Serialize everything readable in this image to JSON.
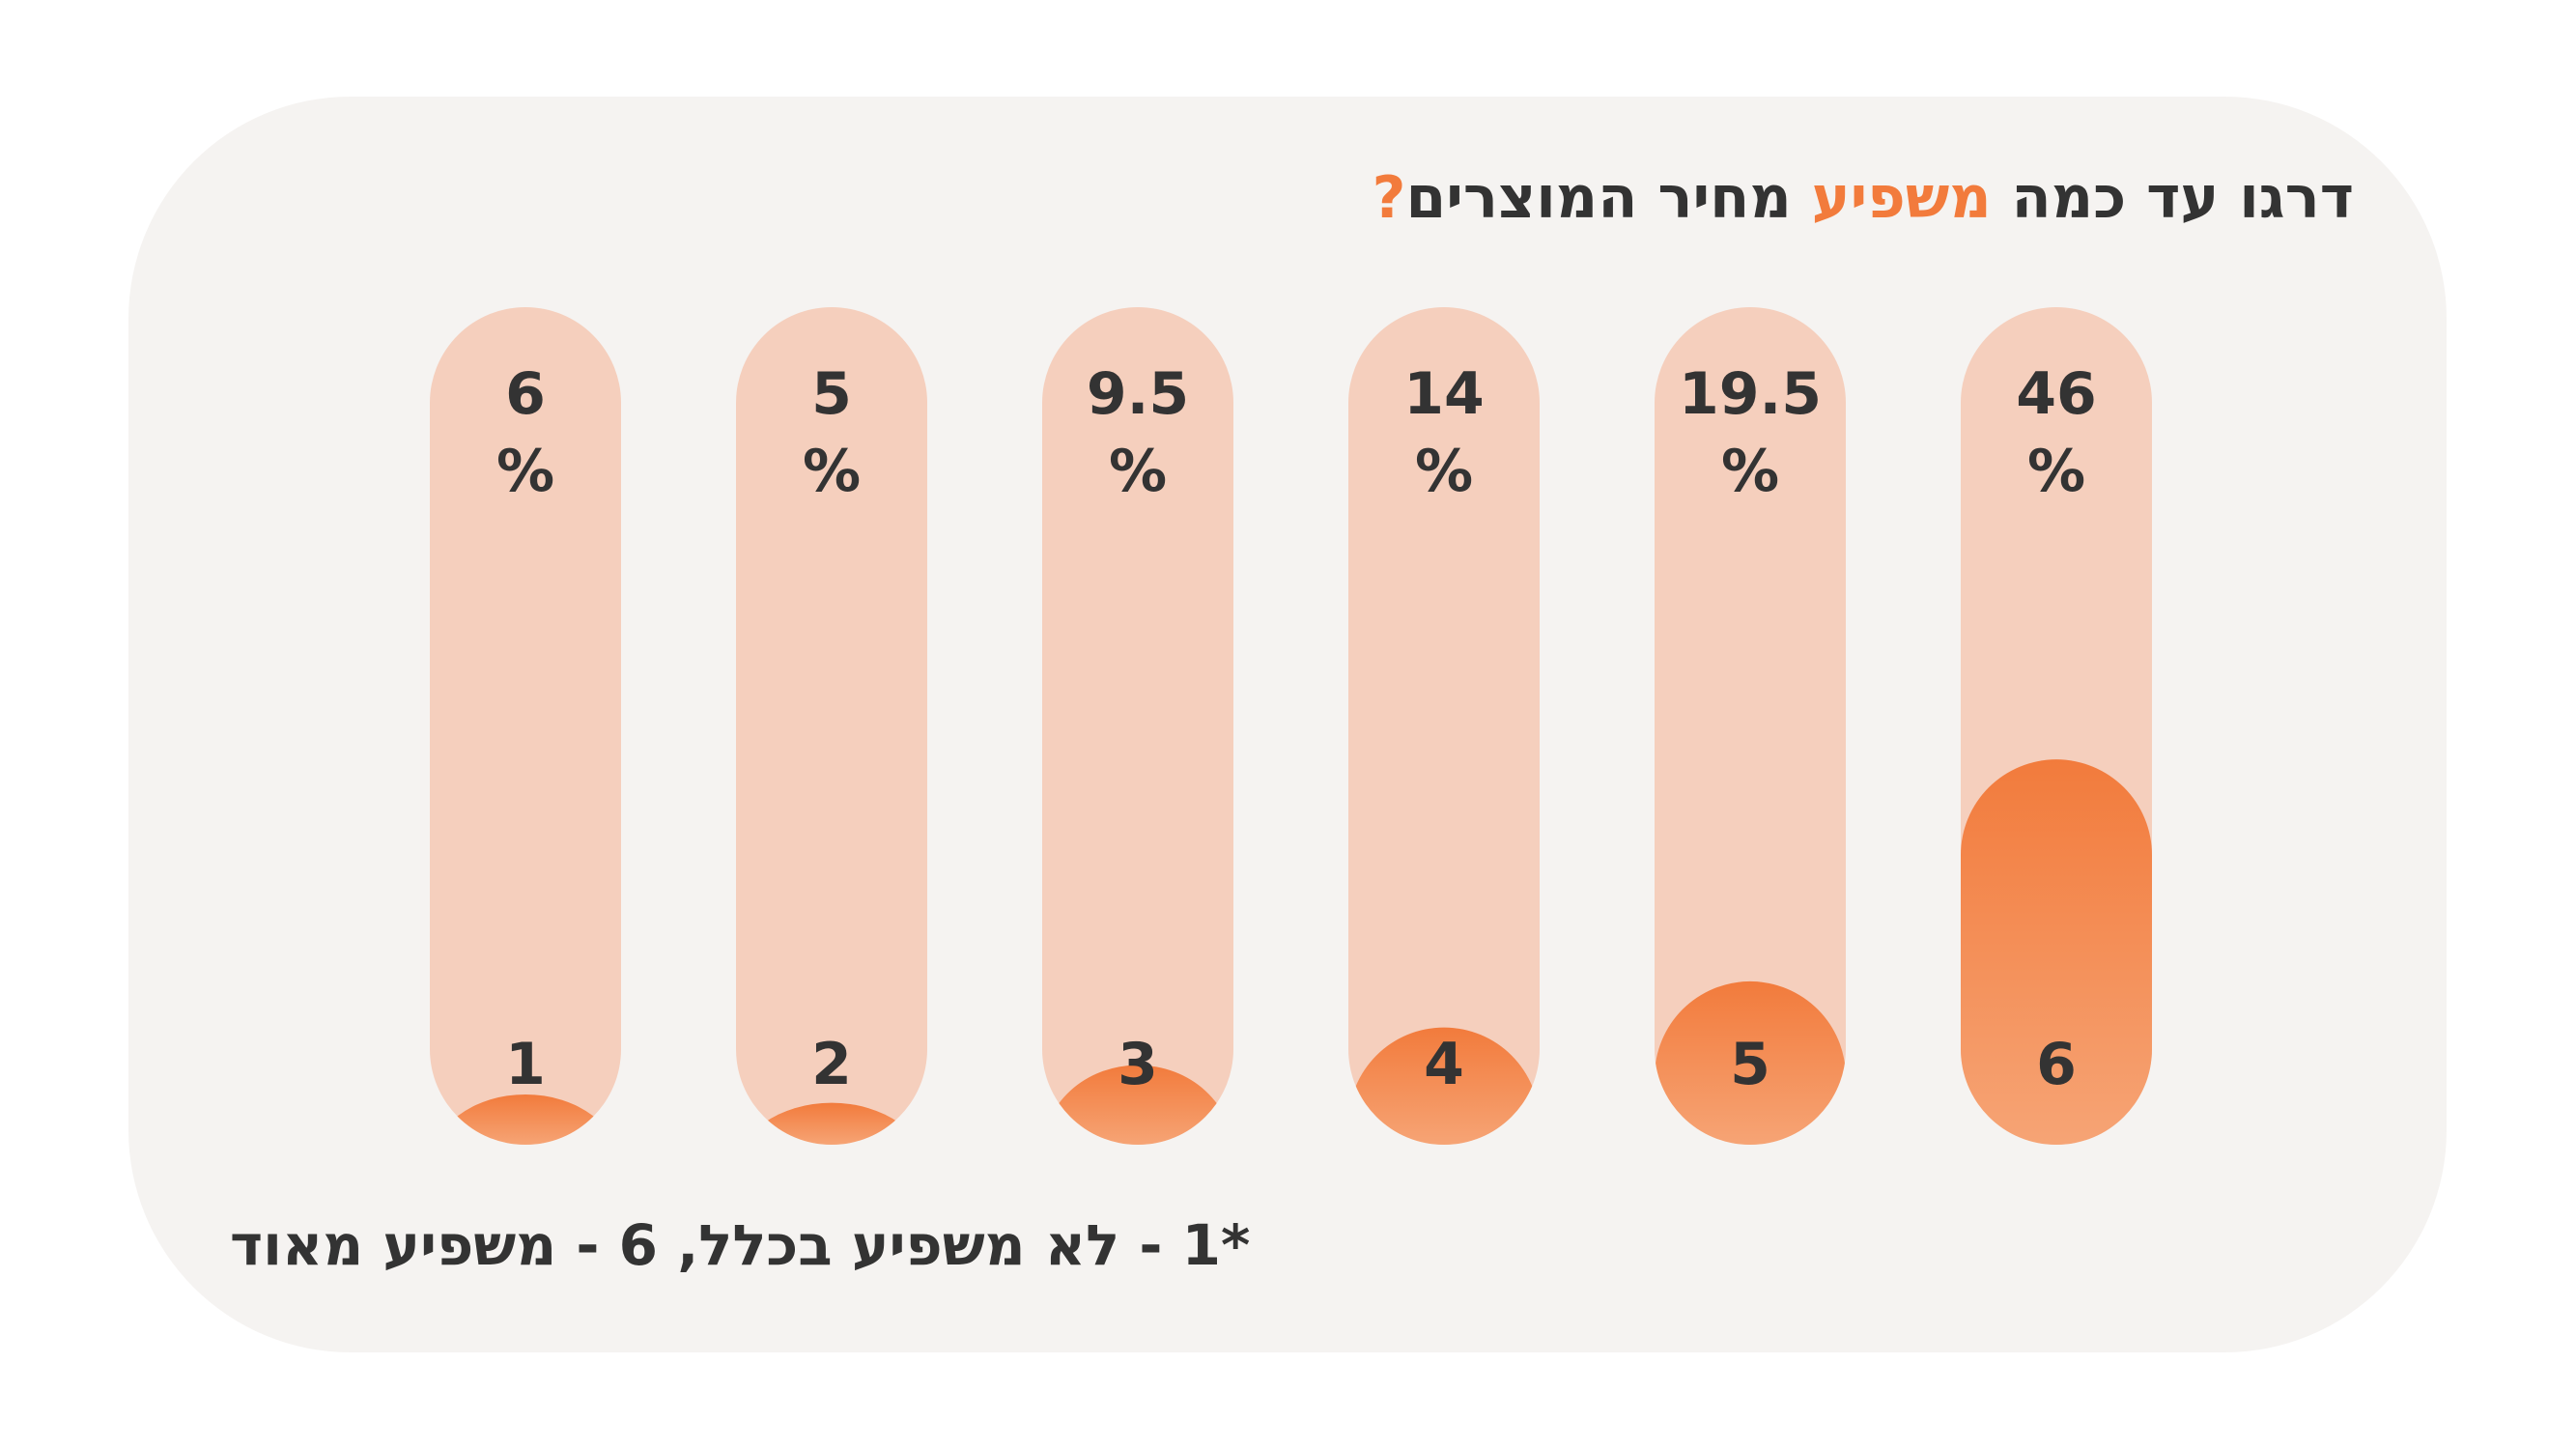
{
  "title": {
    "part1": "דרגו עד כמה ",
    "part2": "משפיע",
    "part3": " מחיר המוצרים",
    "part4": "?"
  },
  "footnote": "*1 - לא משפיע בכלל, 6 - משפיע מאוד",
  "colors": {
    "accent": "#f27b3c",
    "track": "#f5cfbd",
    "fill_top": "#f27b3c",
    "fill_bottom": "#f6a475",
    "text": "#333333",
    "card": "#f5f3f1"
  },
  "chart_data": {
    "type": "bar",
    "title": "דרגו עד כמה משפיע מחיר המוצרים?",
    "categories": [
      "1",
      "2",
      "3",
      "4",
      "5",
      "6"
    ],
    "values": [
      6,
      5,
      9.5,
      14,
      19.5,
      46
    ],
    "value_labels": [
      "6",
      "5",
      "9.5",
      "14",
      "19.5",
      "46"
    ],
    "unit": "%",
    "ylim": [
      0,
      100
    ],
    "xlabel": "",
    "ylabel": "",
    "grid": false,
    "legend": "none"
  }
}
